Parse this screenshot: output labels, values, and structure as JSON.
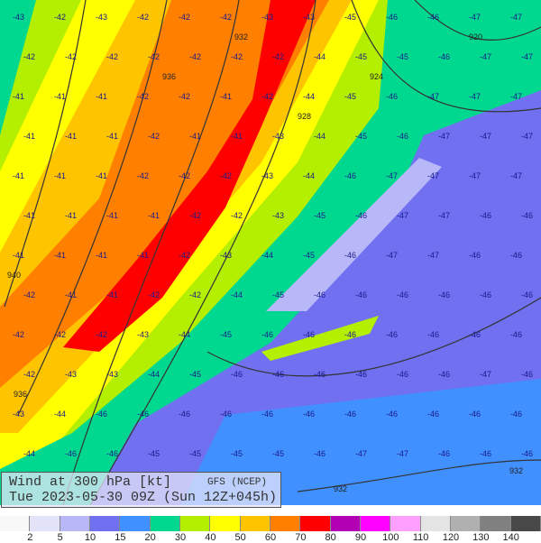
{
  "title": {
    "line1": "Wind at 300 hPa [kt]",
    "source": "GFS (NCEP)",
    "line2": "Tue 2023-05-30 09Z (Sun 12Z+045h)"
  },
  "legend": {
    "colors": [
      "#f8f8f8",
      "#e2e2f8",
      "#b8b8f8",
      "#7070f0",
      "#4090ff",
      "#00d890",
      "#b4ee00",
      "#ffff00",
      "#ffc400",
      "#ff8000",
      "#ff0000",
      "#b400b4",
      "#ff00ff",
      "#ffa0ff",
      "#e4e4e4",
      "#b0b0b0",
      "#808080",
      "#484848"
    ],
    "labels": [
      "2",
      "5",
      "10",
      "15",
      "20",
      "30",
      "40",
      "50",
      "60",
      "70",
      "80",
      "90",
      "100",
      "110",
      "120",
      "130",
      "140"
    ]
  },
  "contour_labels": [
    "940",
    "936",
    "932",
    "928",
    "924",
    "920",
    "936",
    "932",
    "932"
  ],
  "temperature_rows": [
    [
      "-43",
      "-42",
      "-43",
      "-42",
      "-42",
      "-42",
      "-43",
      "-43",
      "-45",
      "-46",
      "-46",
      "-47",
      "-47"
    ],
    [
      "-42",
      "-42",
      "-42",
      "-42",
      "-42",
      "-42",
      "-42",
      "-44",
      "-45",
      "-45",
      "-46",
      "-47",
      "-47"
    ],
    [
      "-41",
      "-41",
      "-41",
      "-42",
      "-42",
      "-41",
      "-42",
      "-44",
      "-45",
      "-46",
      "-47",
      "-47",
      "-47"
    ],
    [
      "-41",
      "-41",
      "-41",
      "-42",
      "-41",
      "-41",
      "-43",
      "-44",
      "-45",
      "-46",
      "-47",
      "-47",
      "-47"
    ],
    [
      "-41",
      "-41",
      "-41",
      "-42",
      "-42",
      "-42",
      "-43",
      "-44",
      "-46",
      "-47",
      "-47",
      "-47",
      "-47"
    ],
    [
      "-41",
      "-41",
      "-41",
      "-41",
      "-42",
      "-42",
      "-43",
      "-45",
      "-46",
      "-47",
      "-47",
      "-46",
      "-46"
    ],
    [
      "-41",
      "-41",
      "-41",
      "-41",
      "-42",
      "-43",
      "-44",
      "-45",
      "-46",
      "-47",
      "-47",
      "-46",
      "-46"
    ],
    [
      "-42",
      "-41",
      "-41",
      "-42",
      "-42",
      "-44",
      "-45",
      "-46",
      "-46",
      "-46",
      "-46",
      "-46",
      "-46"
    ],
    [
      "-42",
      "-42",
      "-42",
      "-43",
      "-44",
      "-45",
      "-46",
      "-46",
      "-46",
      "-46",
      "-46",
      "-46",
      "-46"
    ],
    [
      "-42",
      "-43",
      "-43",
      "-44",
      "-45",
      "-46",
      "-46",
      "-46",
      "-46",
      "-46",
      "-46",
      "-47",
      "-46"
    ],
    [
      "-43",
      "-44",
      "-46",
      "-46",
      "-46",
      "-46",
      "-46",
      "-46",
      "-46",
      "-46",
      "-46",
      "-46",
      "-46"
    ],
    [
      "-44",
      "-46",
      "-46",
      "-45",
      "-45",
      "-45",
      "-45",
      "-46",
      "-47",
      "-47",
      "-46",
      "-46",
      "-46"
    ]
  ]
}
